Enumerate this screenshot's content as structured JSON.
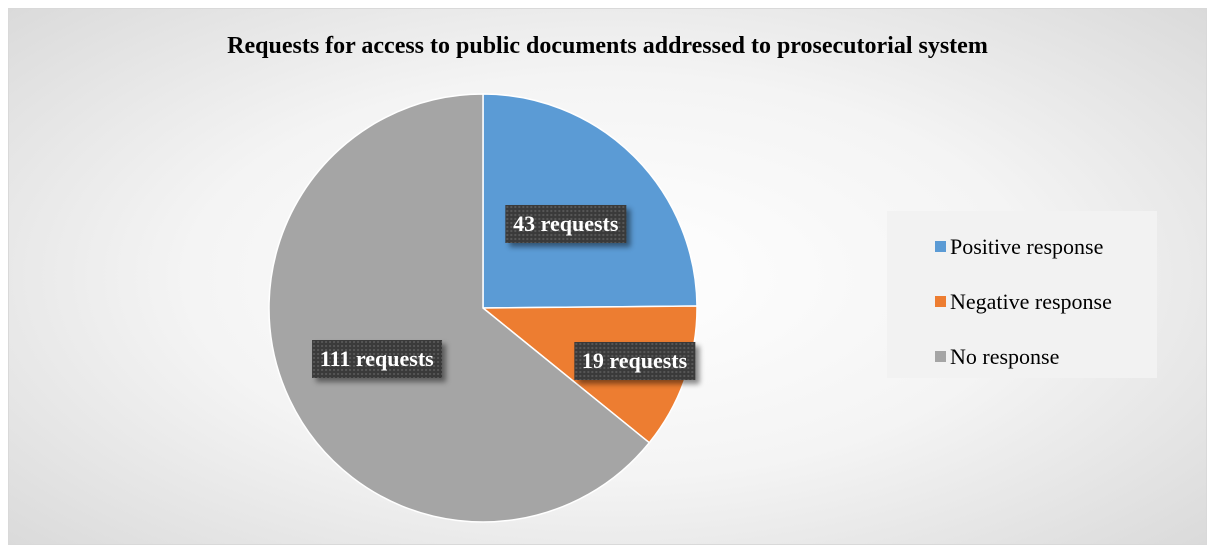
{
  "chart_data": {
    "type": "pie",
    "title": "Requests for access to public documents addressed to prosecutorial system",
    "categories": [
      "Positive response",
      "Negative response",
      "No response"
    ],
    "values": [
      43,
      19,
      111
    ],
    "data_labels": [
      "43 requests",
      "19 requests",
      "111 requests"
    ],
    "colors": [
      "#5b9bd5",
      "#ed7d31",
      "#a5a5a5"
    ],
    "legend": "right",
    "start_angle": "12 o'clock",
    "direction": "clockwise"
  }
}
